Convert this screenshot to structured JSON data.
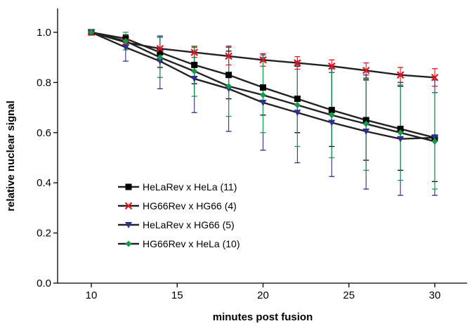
{
  "chart_data": {
    "type": "line",
    "title": "",
    "xlabel": "minutes post fusion",
    "ylabel": "relative nuclear signal",
    "xlim": [
      10,
      30
    ],
    "ylim": [
      0.0,
      1.0
    ],
    "xticks": [
      "10",
      "15",
      "20",
      "25",
      "30"
    ],
    "yticks": [
      "0.0",
      "0.2",
      "0.4",
      "0.6",
      "0.8",
      "1.0"
    ],
    "grid": false,
    "legend_position": "bottom-left",
    "x": [
      10,
      12,
      14,
      16,
      18,
      20,
      22,
      24,
      26,
      28,
      30
    ],
    "series": [
      {
        "name": "HeLaRev x HeLa (11)",
        "color": "#000000",
        "marker": "square",
        "values": [
          1.0,
          0.975,
          0.92,
          0.87,
          0.83,
          0.78,
          0.735,
          0.69,
          0.65,
          0.615,
          0.58
        ],
        "err_upper": [
          0.0,
          0.015,
          0.06,
          0.075,
          0.095,
          0.105,
          0.13,
          0.15,
          0.16,
          0.17,
          0.18
        ],
        "err_lower": [
          0.0,
          0.015,
          0.06,
          0.075,
          0.095,
          0.11,
          0.135,
          0.145,
          0.16,
          0.165,
          0.175
        ]
      },
      {
        "name": "HG66Rev x HG66 (4)",
        "color": "#e8101e",
        "marker": "x",
        "values": [
          1.0,
          0.96,
          0.935,
          0.92,
          0.905,
          0.89,
          0.878,
          0.865,
          0.848,
          0.83,
          0.82
        ],
        "err_upper": [
          0.0,
          0.01,
          0.05,
          0.02,
          0.035,
          0.025,
          0.025,
          0.025,
          0.03,
          0.03,
          0.035
        ],
        "err_lower": [
          0.0,
          0.01,
          0.05,
          0.02,
          0.035,
          0.025,
          0.025,
          0.025,
          0.03,
          0.03,
          0.035
        ]
      },
      {
        "name": "HeLaRev x HG66 (5)",
        "color": "#2b2f8e",
        "marker": "triangle-down",
        "values": [
          1.0,
          0.94,
          0.885,
          0.815,
          0.775,
          0.72,
          0.68,
          0.64,
          0.605,
          0.575,
          0.58
        ],
        "err_upper": [
          0.0,
          0.045,
          0.1,
          0.13,
          0.17,
          0.19,
          0.205,
          0.215,
          0.225,
          0.225,
          0.23
        ],
        "err_lower": [
          0.0,
          0.055,
          0.11,
          0.135,
          0.17,
          0.19,
          0.2,
          0.215,
          0.23,
          0.225,
          0.23
        ]
      },
      {
        "name": "HG66Rev x HeLa (10)",
        "color": "#0f9b47",
        "marker": "diamond",
        "values": [
          1.0,
          0.965,
          0.9,
          0.845,
          0.785,
          0.75,
          0.71,
          0.67,
          0.635,
          0.6,
          0.565
        ],
        "err_upper": [
          0.0,
          0.035,
          0.08,
          0.1,
          0.12,
          0.15,
          0.16,
          0.17,
          0.18,
          0.19,
          0.195
        ],
        "err_lower": [
          0.0,
          0.035,
          0.08,
          0.1,
          0.12,
          0.15,
          0.165,
          0.17,
          0.185,
          0.19,
          0.19
        ]
      }
    ]
  }
}
